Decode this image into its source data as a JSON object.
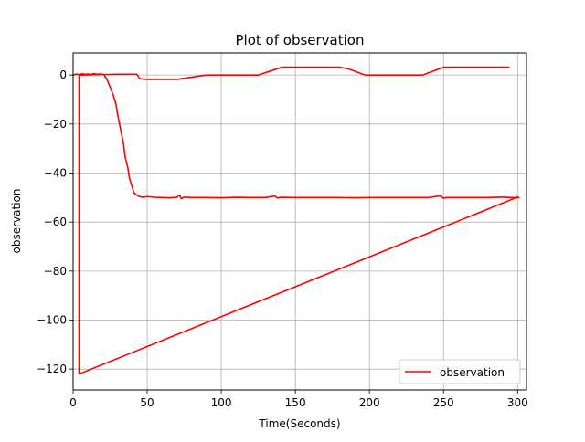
{
  "chart_data": {
    "type": "line",
    "title": "Plot of observation",
    "xlabel": "Time(Seconds)",
    "ylabel": "observation",
    "xlim": [
      0,
      306
    ],
    "ylim": [
      -128.5,
      9
    ],
    "xticks": [
      0,
      50,
      100,
      150,
      200,
      250,
      300
    ],
    "yticks": [
      0,
      -20,
      -40,
      -60,
      -80,
      -100,
      -120
    ],
    "grid": true,
    "legend": {
      "position": "lower-right",
      "entries": [
        "observation"
      ]
    },
    "series": [
      {
        "name": "observation",
        "color": "#ff0000",
        "points": [
          [
            0,
            0
          ],
          [
            2,
            0.4
          ],
          [
            4,
            0.2
          ],
          [
            6,
            0.5
          ],
          [
            8,
            0.3
          ],
          [
            10,
            0.4
          ],
          [
            12,
            0.2
          ],
          [
            14,
            0.6
          ],
          [
            16,
            0.3
          ],
          [
            18,
            0.4
          ],
          [
            20,
            0.3
          ],
          [
            21,
            0
          ],
          [
            23,
            -2
          ],
          [
            25,
            -5
          ],
          [
            27,
            -8
          ],
          [
            29,
            -12
          ],
          [
            30,
            -16
          ],
          [
            32,
            -22
          ],
          [
            34,
            -28
          ],
          [
            35,
            -33
          ],
          [
            37,
            -38
          ],
          [
            38,
            -42
          ],
          [
            40,
            -46
          ],
          [
            41,
            -48
          ],
          [
            43,
            -49
          ],
          [
            44,
            -49.4
          ],
          [
            46,
            -49.8
          ],
          [
            48,
            -49.8
          ],
          [
            50,
            -49.6
          ],
          [
            55,
            -49.9
          ],
          [
            60,
            -50
          ],
          [
            65,
            -50.1
          ],
          [
            70,
            -49.9
          ],
          [
            72,
            -49
          ],
          [
            73,
            -50.5
          ],
          [
            75,
            -49.8
          ],
          [
            80,
            -50
          ],
          [
            90,
            -50
          ],
          [
            100,
            -50.1
          ],
          [
            110,
            -49.9
          ],
          [
            120,
            -50
          ],
          [
            130,
            -50
          ],
          [
            136,
            -49.4
          ],
          [
            138,
            -50.2
          ],
          [
            140,
            -49.9
          ],
          [
            150,
            -50
          ],
          [
            160,
            -50
          ],
          [
            170,
            -50
          ],
          [
            180,
            -50
          ],
          [
            190,
            -50.1
          ],
          [
            200,
            -50
          ],
          [
            210,
            -50
          ],
          [
            220,
            -50
          ],
          [
            230,
            -50
          ],
          [
            240,
            -50
          ],
          [
            248,
            -49.3
          ],
          [
            250,
            -50.3
          ],
          [
            252,
            -50
          ],
          [
            260,
            -50
          ],
          [
            270,
            -50
          ],
          [
            280,
            -50
          ],
          [
            290,
            -49.8
          ],
          [
            295,
            -50
          ],
          [
            300,
            -50
          ],
          [
            301,
            -50
          ],
          [
            300,
            -49.8
          ],
          [
            4,
            -122
          ],
          [
            4,
            0
          ],
          [
            6,
            0
          ],
          [
            20,
            0.2
          ],
          [
            30,
            0.3
          ],
          [
            43,
            0.3
          ],
          [
            45,
            -1.5
          ],
          [
            50,
            -1.8
          ],
          [
            60,
            -1.8
          ],
          [
            70,
            -1.8
          ],
          [
            72,
            -1.6
          ],
          [
            90,
            0
          ],
          [
            125,
            0
          ],
          [
            141,
            3.2
          ],
          [
            160,
            3.2
          ],
          [
            180,
            3.2
          ],
          [
            186,
            2.5
          ],
          [
            197,
            0
          ],
          [
            236,
            0
          ],
          [
            250,
            3.2
          ],
          [
            270,
            3.2
          ],
          [
            294,
            3.2
          ]
        ]
      }
    ]
  }
}
